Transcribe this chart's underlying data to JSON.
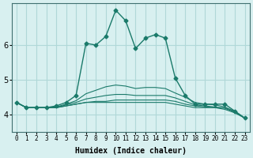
{
  "xlabel": "Humidex (Indice chaleur)",
  "ylabel": "",
  "background_color": "#d8f0f0",
  "grid_color": "#b0d8d8",
  "line_color": "#1a7a6a",
  "x_labels": [
    "0",
    "1",
    "2",
    "3",
    "4",
    "5",
    "6",
    "7",
    "8",
    "9",
    "10",
    "11",
    "12",
    "13",
    "14",
    "15",
    "16",
    "17",
    "18",
    "19",
    "20",
    "21",
    "22",
    "23"
  ],
  "xlim": [
    -0.5,
    23.5
  ],
  "ylim": [
    3.5,
    7.2
  ],
  "yticks": [
    4,
    5,
    6
  ],
  "series": [
    [
      4.35,
      4.2,
      4.2,
      4.2,
      4.25,
      4.35,
      4.55,
      6.05,
      6.0,
      6.25,
      7.0,
      6.7,
      5.9,
      6.2,
      6.3,
      6.2,
      5.05,
      4.55,
      4.3,
      4.3,
      4.3,
      4.3,
      4.1,
      3.9
    ],
    [
      4.35,
      4.2,
      4.2,
      4.2,
      4.2,
      4.25,
      4.3,
      4.35,
      4.35,
      4.35,
      4.35,
      4.35,
      4.35,
      4.35,
      4.35,
      4.35,
      4.3,
      4.25,
      4.2,
      4.2,
      4.2,
      4.2,
      4.1,
      3.9
    ],
    [
      4.35,
      4.2,
      4.2,
      4.2,
      4.2,
      4.25,
      4.3,
      4.35,
      4.38,
      4.38,
      4.42,
      4.42,
      4.42,
      4.42,
      4.42,
      4.42,
      4.38,
      4.3,
      4.25,
      4.22,
      4.2,
      4.15,
      4.05,
      3.9
    ],
    [
      4.35,
      4.2,
      4.2,
      4.2,
      4.2,
      4.28,
      4.35,
      4.45,
      4.5,
      4.55,
      4.58,
      4.58,
      4.55,
      4.55,
      4.55,
      4.55,
      4.48,
      4.38,
      4.28,
      4.25,
      4.22,
      4.18,
      4.07,
      3.9
    ],
    [
      4.35,
      4.2,
      4.2,
      4.2,
      4.22,
      4.3,
      4.4,
      4.6,
      4.7,
      4.8,
      4.85,
      4.82,
      4.75,
      4.78,
      4.78,
      4.75,
      4.62,
      4.5,
      4.35,
      4.3,
      4.28,
      4.22,
      4.08,
      3.9
    ]
  ]
}
